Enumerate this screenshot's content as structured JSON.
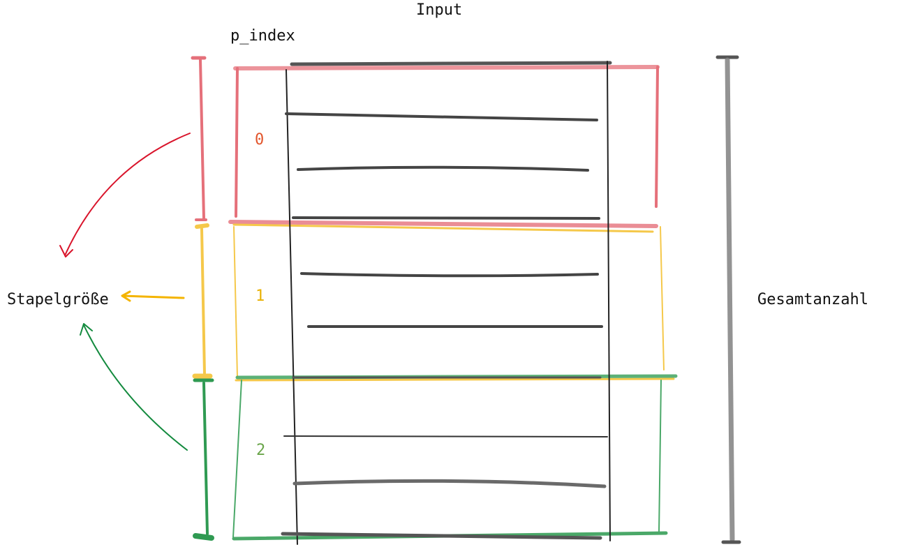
{
  "labels": {
    "title": "Input",
    "index_header": "p_index",
    "batch_size": "Stapelgröße",
    "total_count": "Gesamtanzahl"
  },
  "batches": [
    {
      "index": "0",
      "color": "#e5707a"
    },
    {
      "index": "1",
      "color": "#f5c84a"
    },
    {
      "index": "2",
      "color": "#4aa868"
    }
  ],
  "colors": {
    "ink": "#333333",
    "index0": "#e2552c",
    "index1": "#e8b000",
    "index2": "#6aa54a",
    "arrow_red": "#d9142b",
    "arrow_yellow": "#f4b400",
    "arrow_green": "#138a3e",
    "total_bar": "#808080"
  }
}
